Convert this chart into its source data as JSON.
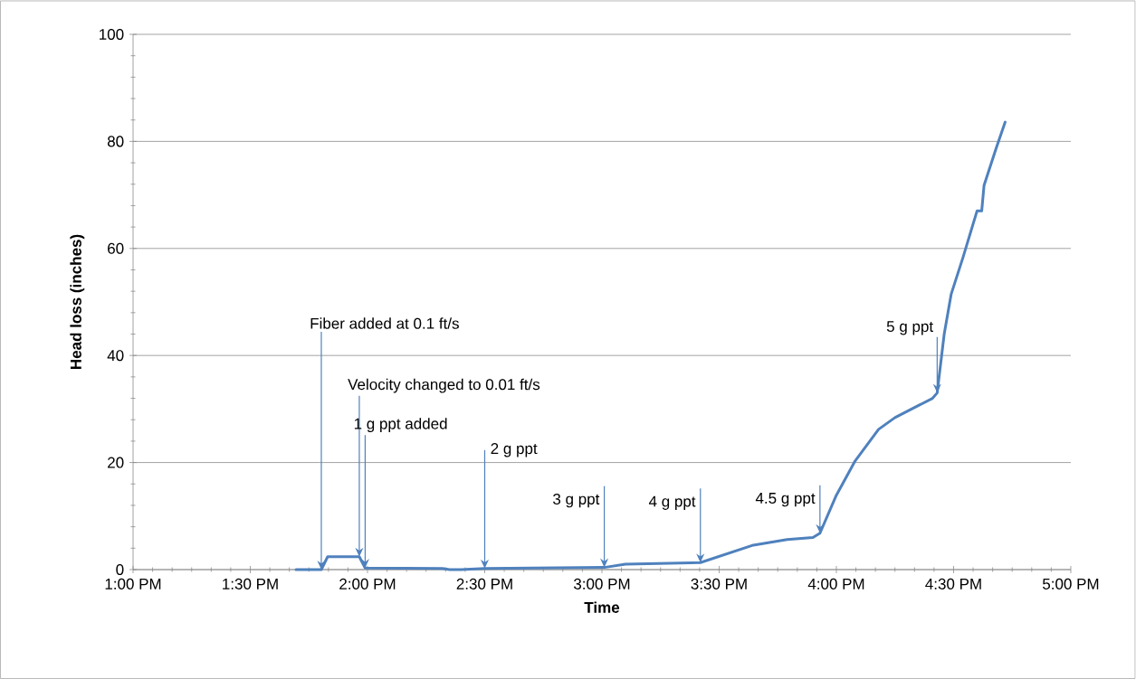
{
  "chart_data": {
    "type": "line",
    "xlabel": "Time",
    "ylabel": "Head loss (inches)",
    "xlim": [
      13,
      17
    ],
    "ylim": [
      0,
      100
    ],
    "xticks": [
      {
        "value": 13,
        "label": "1:00 PM"
      },
      {
        "value": 13.5,
        "label": "1:30 PM"
      },
      {
        "value": 14,
        "label": "2:00 PM"
      },
      {
        "value": 14.5,
        "label": "2:30 PM"
      },
      {
        "value": 15,
        "label": "3:00 PM"
      },
      {
        "value": 15.5,
        "label": "3:30 PM"
      },
      {
        "value": 16,
        "label": "4:00 PM"
      },
      {
        "value": 16.5,
        "label": "4:30 PM"
      },
      {
        "value": 17,
        "label": "5:00 PM"
      }
    ],
    "yticks": [
      0,
      20,
      40,
      60,
      80,
      100
    ],
    "grid": "y",
    "marker": "none",
    "line_style": "solid",
    "series": [
      {
        "color": "#4f81bd",
        "x": [
          13.695,
          13.803,
          13.83,
          13.965,
          13.99,
          14.32,
          14.35,
          14.4,
          14.5,
          15.01,
          15.1,
          15.42,
          15.64,
          15.79,
          15.9,
          15.93,
          16.0,
          16.08,
          16.18,
          16.25,
          16.41,
          16.43,
          16.46,
          16.49,
          16.54,
          16.6,
          16.62,
          16.63,
          16.68,
          16.72
        ],
        "values": [
          0,
          0,
          2.4,
          2.4,
          0.3,
          0.2,
          0,
          0,
          0.2,
          0.4,
          1.0,
          1.3,
          4.5,
          5.6,
          6.0,
          6.8,
          13.9,
          20.3,
          26.2,
          28.4,
          32,
          33,
          44,
          51.5,
          58.3,
          67,
          67,
          71.8,
          78.5,
          83.6
        ]
      }
    ],
    "annotations": [
      {
        "text": "Fiber added at 0.1 ft/s",
        "x": 13.803,
        "y": 0
      },
      {
        "text": "Velocity changed to 0.01 ft/s",
        "x": 13.965,
        "y": 2.4
      },
      {
        "text": "1 g ppt added",
        "x": 13.99,
        "y": 0.3
      },
      {
        "text": "2 g ppt",
        "x": 14.5,
        "y": 0.2
      },
      {
        "text": "3 g ppt",
        "x": 15.01,
        "y": 0.4
      },
      {
        "text": "4 g ppt",
        "x": 15.42,
        "y": 1.3
      },
      {
        "text": "4.5 g ppt",
        "x": 15.93,
        "y": 6.8
      },
      {
        "text": "5 g ppt",
        "x": 16.43,
        "y": 33
      }
    ]
  }
}
